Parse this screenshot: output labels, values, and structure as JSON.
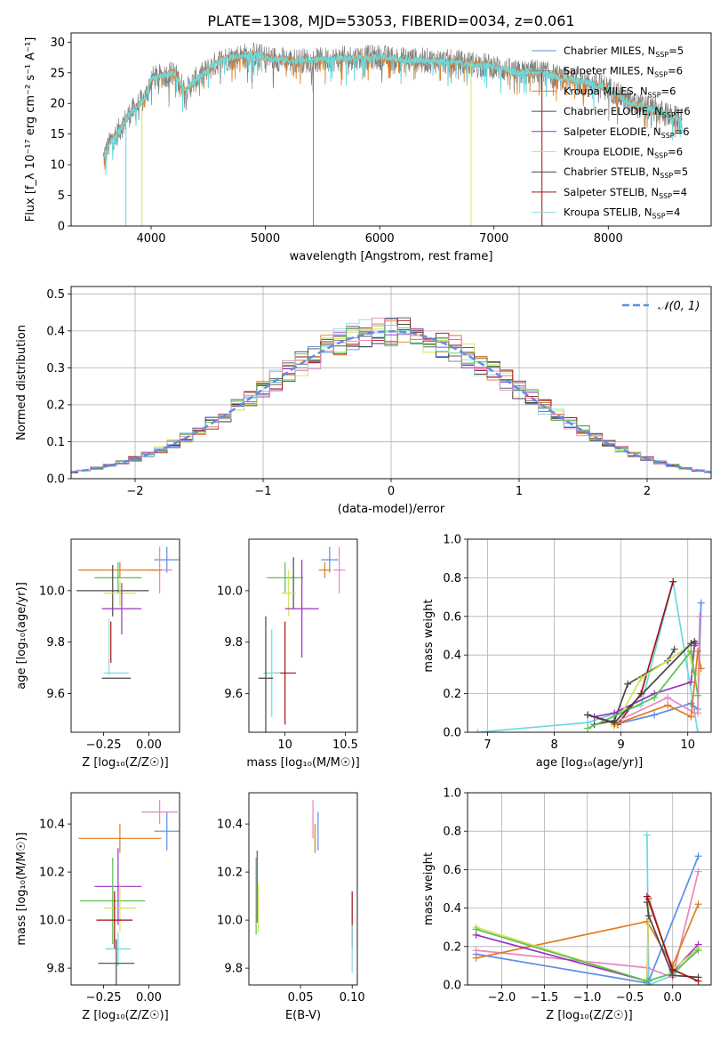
{
  "title": "PLATE=1308, MJD=53053, FIBERID=0034, z=0.061",
  "colors": {
    "chabrier_miles": "#5b8ee6",
    "salpeter_miles": "#808080",
    "kroupa_miles": "#e07b20",
    "chabrier_elodie": "#4a4a4a",
    "salpeter_elodie": "#9b30c0",
    "kroupa_elodie": "#d4e05a",
    "chabrier_stelib": "#454545",
    "salpeter_stelib": "#a01010",
    "kroupa_stelib": "#8fd8e0",
    "cyan": "#6ad9e0",
    "pink": "#e886c0",
    "green": "#5cc050"
  },
  "chart_data": [
    {
      "type": "line",
      "id": "spectrum",
      "xlabel": "wavelength [Angstrom, rest frame]",
      "ylabel": "Flux [f_λ 10⁻¹⁷ erg cm⁻² s⁻¹ A⁻¹]",
      "xlim": [
        3300,
        8900
      ],
      "ylim": [
        0,
        31.5
      ],
      "xticks": [
        4000,
        5000,
        6000,
        7000,
        8000
      ],
      "yticks": [
        0,
        5,
        10,
        15,
        20,
        25,
        30
      ],
      "grid": false,
      "legend_position": "top-right",
      "legend": [
        {
          "label": "Chabrier MILES, N",
          "sub": "SSP",
          "tail": "=5",
          "color": "#5b8ee6"
        },
        {
          "label": "Salpeter MILES, N",
          "sub": "SSP",
          "tail": "=6",
          "color": "#808080"
        },
        {
          "label": "Kroupa MILES, N",
          "sub": "SSP",
          "tail": "=6",
          "color": "#e07b20"
        },
        {
          "label": "Chabrier ELODIE, N",
          "sub": "SSP",
          "tail": "=6",
          "color": "#4a4a4a"
        },
        {
          "label": "Salpeter ELODIE, N",
          "sub": "SSP",
          "tail": "=6",
          "color": "#9b30c0"
        },
        {
          "label": "Kroupa ELODIE, N",
          "sub": "SSP",
          "tail": "=6",
          "color": "#d4e05a"
        },
        {
          "label": "Chabrier STELIB, N",
          "sub": "SSP",
          "tail": "=5",
          "color": "#454545"
        },
        {
          "label": "Salpeter STELIB, N",
          "sub": "SSP",
          "tail": "=4",
          "color": "#a01010"
        },
        {
          "label": "Kroupa STELIB, N",
          "sub": "SSP",
          "tail": "=4",
          "color": "#8fd8e0"
        }
      ],
      "continuum": {
        "x": [
          3580,
          3650,
          3700,
          3800,
          3900,
          3950,
          4000,
          4100,
          4200,
          4300,
          4400,
          4500,
          4600,
          4700,
          4800,
          4900,
          5000,
          5200,
          5400,
          5600,
          5800,
          6000,
          6200,
          6400,
          6600,
          6800,
          7000,
          7200,
          7400,
          7600,
          7800,
          8000,
          8200,
          8400,
          8600,
          8650
        ],
        "y": [
          11,
          14,
          15,
          18,
          20,
          21,
          24,
          24.5,
          25,
          22,
          24,
          25.5,
          27,
          27.5,
          27.8,
          28,
          27.5,
          27,
          27,
          27.2,
          27.5,
          27.5,
          27.2,
          27,
          26.8,
          26.5,
          26,
          25,
          25.2,
          24,
          23.5,
          22.5,
          20,
          19,
          17.5,
          17
        ]
      }
    },
    {
      "type": "line",
      "id": "residuals",
      "xlabel": "(data-model)/error",
      "ylabel": "Normed distribution",
      "xlim": [
        -2.5,
        2.5
      ],
      "ylim": [
        0,
        0.52
      ],
      "xticks": [
        -2,
        -1,
        0,
        1,
        2
      ],
      "yticks": [
        0.0,
        0.1,
        0.2,
        0.3,
        0.4,
        0.5
      ],
      "grid": true,
      "legend_position": "top-right",
      "legend": "𝒩(0, 1)",
      "legend_color": "#5b8ee6"
    },
    {
      "type": "scatter",
      "id": "age-vs-z",
      "xlabel": "Z [log₁₀(Z/Z☉)]",
      "ylabel": "age  [log₁₀(age/yr)]",
      "xlim": [
        -0.43,
        0.17
      ],
      "ylim": [
        9.45,
        10.2
      ],
      "xticks": [
        -0.25,
        0.0
      ],
      "xticklabels": [
        "−0.25",
        "0.00"
      ],
      "yticks": [
        9.6,
        9.8,
        10.0
      ],
      "points": [
        {
          "x": 0.1,
          "xerr": 0.07,
          "y": 10.12,
          "yerr": 0.05,
          "color": "#5b8ee6"
        },
        {
          "x": 0.06,
          "xerr": 0.07,
          "y": 10.08,
          "yerr": 0.09,
          "color": "#e886c0"
        },
        {
          "x": -0.16,
          "xerr": 0.23,
          "y": 10.08,
          "yerr": 0.03,
          "color": "#e07b20"
        },
        {
          "x": -0.17,
          "xerr": 0.13,
          "y": 10.05,
          "yerr": 0.06,
          "color": "#5cc050"
        },
        {
          "x": -0.2,
          "xerr": 0.2,
          "y": 10.0,
          "yerr": 0.1,
          "color": "#4a4a4a"
        },
        {
          "x": -0.16,
          "xerr": 0.09,
          "y": 9.99,
          "yerr": 0.05,
          "color": "#d4e05a"
        },
        {
          "x": -0.15,
          "xerr": 0.11,
          "y": 9.93,
          "yerr": 0.1,
          "color": "#9b30c0"
        },
        {
          "x": -0.21,
          "xerr": 0.0,
          "y": 9.8,
          "yerr": 0.08,
          "color": "#a01010"
        },
        {
          "x": -0.22,
          "xerr": 0.0,
          "y": 9.78,
          "yerr": 0.11,
          "color": "#8fd8e0"
        },
        {
          "x": -0.18,
          "xerr": 0.07,
          "y": 9.68,
          "yerr": 0.0,
          "color": "#6ad9e0"
        },
        {
          "x": -0.18,
          "xerr": 0.08,
          "y": 9.66,
          "yerr": 0.0,
          "color": "#454545"
        }
      ]
    },
    {
      "type": "scatter",
      "id": "age-vs-mass",
      "xlabel": "mass [log₁₀(M/M☉)]",
      "ylabel": "",
      "xlim": [
        9.7,
        10.6
      ],
      "ylim": [
        9.45,
        10.2
      ],
      "xticks": [
        10.0,
        10.5
      ],
      "yticks": [
        9.6,
        9.8,
        10.0
      ],
      "points": [
        {
          "x": 10.37,
          "xerr": 0.07,
          "y": 10.12,
          "yerr": 0.05,
          "color": "#5b8ee6"
        },
        {
          "x": 10.45,
          "xerr": 0.05,
          "y": 10.08,
          "yerr": 0.09,
          "color": "#e886c0"
        },
        {
          "x": 10.33,
          "xerr": 0.05,
          "y": 10.08,
          "yerr": 0.03,
          "color": "#e07b20"
        },
        {
          "x": 10.0,
          "xerr": 0.15,
          "y": 10.05,
          "yerr": 0.06,
          "color": "#5cc050"
        },
        {
          "x": 10.07,
          "xerr": 0.0,
          "y": 10.03,
          "yerr": 0.1,
          "color": "#4a4a4a"
        },
        {
          "x": 10.03,
          "xerr": 0.06,
          "y": 9.99,
          "yerr": 0.09,
          "color": "#d4e05a"
        },
        {
          "x": 10.14,
          "xerr": 0.14,
          "y": 9.93,
          "yerr": 0.19,
          "color": "#9b30c0"
        },
        {
          "x": 10.0,
          "xerr": 0.09,
          "y": 9.68,
          "yerr": 0.2,
          "color": "#a01010"
        },
        {
          "x": 9.89,
          "xerr": 0.07,
          "y": 9.68,
          "yerr": 0.17,
          "color": "#6ad9e0"
        },
        {
          "x": 9.84,
          "xerr": 0.06,
          "y": 9.66,
          "yerr": 0.24,
          "color": "#454545"
        }
      ]
    },
    {
      "type": "line",
      "id": "massweight-vs-age",
      "xlabel": "age  [log₁₀(age/yr)]",
      "ylabel": "mass weight",
      "xlim": [
        6.7,
        10.35
      ],
      "ylim": [
        0,
        1.0
      ],
      "xticks": [
        7,
        8,
        9,
        10
      ],
      "yticks": [
        0.0,
        0.2,
        0.4,
        0.6,
        0.8,
        1.0
      ],
      "grid": true,
      "series": [
        {
          "color": "#6ad9e0",
          "x": [
            6.85,
            8.5,
            9.3,
            9.78,
            10.15
          ],
          "y": [
            0.0,
            0.05,
            0.14,
            0.78,
            0.0
          ]
        },
        {
          "color": "#a01010",
          "x": [
            8.5,
            8.95,
            9.3,
            9.78
          ],
          "y": [
            0.09,
            0.04,
            0.2,
            0.78
          ]
        },
        {
          "color": "#5b8ee6",
          "x": [
            8.9,
            9.5,
            10.05,
            10.15,
            10.2
          ],
          "y": [
            0.04,
            0.09,
            0.15,
            0.12,
            0.67
          ]
        },
        {
          "color": "#e886c0",
          "x": [
            8.9,
            9.7,
            10.1,
            10.15,
            10.18
          ],
          "y": [
            0.05,
            0.18,
            0.1,
            0.1,
            0.6
          ]
        },
        {
          "color": "#4a4a4a",
          "x": [
            8.6,
            8.9,
            9.1,
            9.7,
            9.8
          ],
          "y": [
            0.04,
            0.06,
            0.25,
            0.37,
            0.43
          ]
        },
        {
          "color": "#9b30c0",
          "x": [
            8.6,
            8.9,
            9.5,
            10.05,
            10.1,
            10.12
          ],
          "y": [
            0.08,
            0.1,
            0.2,
            0.26,
            0.45,
            0.46
          ]
        },
        {
          "color": "#d4e05a",
          "x": [
            8.9,
            9.3,
            10.0,
            10.1,
            10.15
          ],
          "y": [
            0.03,
            0.28,
            0.44,
            0.3,
            0.3
          ]
        },
        {
          "color": "#e07b20",
          "x": [
            8.9,
            9.7,
            10.05,
            10.15,
            10.2
          ],
          "y": [
            0.04,
            0.14,
            0.08,
            0.42,
            0.33
          ]
        },
        {
          "color": "#5cc050",
          "x": [
            8.5,
            9.5,
            10.05,
            10.15
          ],
          "y": [
            0.02,
            0.18,
            0.42,
            0.19
          ]
        },
        {
          "color": "#454545",
          "x": [
            8.5,
            8.9,
            10.05,
            10.1
          ],
          "y": [
            0.09,
            0.05,
            0.46,
            0.47
          ]
        }
      ]
    },
    {
      "type": "scatter",
      "id": "mass-vs-z",
      "xlabel": "Z [log₁₀(Z/Z☉)]",
      "ylabel": "mass [log₁₀(M/M☉)]",
      "xlim": [
        -0.43,
        0.17
      ],
      "ylim": [
        9.73,
        10.53
      ],
      "xticks": [
        -0.25,
        0.0
      ],
      "xticklabels": [
        "−0.25",
        "0.00"
      ],
      "yticks": [
        9.8,
        10.0,
        10.2,
        10.4
      ],
      "points": [
        {
          "x": 0.1,
          "xerr": 0.07,
          "y": 10.37,
          "yerr": 0.08,
          "color": "#5b8ee6"
        },
        {
          "x": 0.06,
          "xerr": 0.1,
          "y": 10.45,
          "yerr": 0.05,
          "color": "#e886c0"
        },
        {
          "x": -0.16,
          "xerr": 0.23,
          "y": 10.34,
          "yerr": 0.06,
          "color": "#e07b20"
        },
        {
          "x": -0.17,
          "xerr": 0.13,
          "y": 10.14,
          "yerr": 0.16,
          "color": "#9b30c0"
        },
        {
          "x": -0.2,
          "xerr": 0.18,
          "y": 10.08,
          "yerr": 0.18,
          "color": "#5cc050"
        },
        {
          "x": -0.16,
          "xerr": 0.09,
          "y": 10.05,
          "yerr": 0.1,
          "color": "#d4e05a"
        },
        {
          "x": -0.19,
          "xerr": 0.1,
          "y": 10.0,
          "yerr": 0.12,
          "color": "#a01010"
        },
        {
          "x": -0.17,
          "xerr": 0.07,
          "y": 9.88,
          "yerr": 0.07,
          "color": "#6ad9e0"
        },
        {
          "x": -0.18,
          "xerr": 0.1,
          "y": 9.82,
          "yerr": 0.1,
          "color": "#454545"
        }
      ]
    },
    {
      "type": "scatter",
      "id": "mass-vs-ebv",
      "xlabel": "E(B-V)",
      "ylabel": "",
      "xlim": [
        0.0,
        0.105
      ],
      "ylim": [
        9.73,
        10.53
      ],
      "xticks": [
        0.05,
        0.1
      ],
      "xticklabels": [
        "0.05",
        "0.10"
      ],
      "yticks": [
        9.8,
        10.0,
        10.2,
        10.4
      ],
      "points": [
        {
          "x": 0.067,
          "y": 10.37,
          "yerr": 0.08,
          "color": "#5b8ee6"
        },
        {
          "x": 0.062,
          "y": 10.42,
          "yerr": 0.08,
          "color": "#e886c0"
        },
        {
          "x": 0.064,
          "y": 10.34,
          "yerr": 0.06,
          "color": "#e07b20"
        },
        {
          "x": 0.007,
          "y": 10.1,
          "yerr": 0.16,
          "color": "#5cc050"
        },
        {
          "x": 0.008,
          "y": 10.14,
          "yerr": 0.15,
          "color": "#9b30c0"
        },
        {
          "x": 0.009,
          "y": 10.05,
          "yerr": 0.1,
          "color": "#d4e05a"
        },
        {
          "x": 0.1,
          "y": 10.0,
          "yerr": 0.12,
          "color": "#a01010"
        },
        {
          "x": 0.1,
          "y": 9.88,
          "yerr": 0.1,
          "color": "#8fd8e0"
        }
      ]
    },
    {
      "type": "line",
      "id": "massweight-vs-z",
      "xlabel": "Z [log₁₀(Z/Z☉)]",
      "ylabel": "mass weight",
      "xlim": [
        -2.4,
        0.45
      ],
      "ylim": [
        0,
        1.0
      ],
      "xticks": [
        -2.0,
        -1.5,
        -1.0,
        -0.5,
        0.0
      ],
      "xticklabels": [
        "−2.0",
        "−1.5",
        "−1.0",
        "−0.5",
        "0.0"
      ],
      "yticks": [
        0.0,
        0.2,
        0.4,
        0.6,
        0.8,
        1.0
      ],
      "grid": true,
      "series": [
        {
          "color": "#6ad9e0",
          "x": [
            -0.3,
            -0.28,
            0.0,
            0.3
          ],
          "y": [
            0.78,
            0.0,
            0.05,
            0.19
          ]
        },
        {
          "color": "#5b8ee6",
          "x": [
            -2.3,
            -0.3,
            -0.28,
            0.3
          ],
          "y": [
            0.16,
            0.01,
            0.02,
            0.67
          ]
        },
        {
          "color": "#e886c0",
          "x": [
            -2.3,
            -0.3,
            0.0,
            0.3
          ],
          "y": [
            0.18,
            0.09,
            0.04,
            0.59
          ]
        },
        {
          "color": "#e07b20",
          "x": [
            -2.3,
            -0.3,
            0.0,
            0.3
          ],
          "y": [
            0.14,
            0.33,
            0.1,
            0.42
          ]
        },
        {
          "color": "#9b30c0",
          "x": [
            -2.3,
            -0.3,
            -0.28,
            0.0,
            0.3
          ],
          "y": [
            0.26,
            0.02,
            0.45,
            0.07,
            0.21
          ]
        },
        {
          "color": "#d4e05a",
          "x": [
            -2.3,
            -0.3,
            -0.28,
            0.0,
            0.3
          ],
          "y": [
            0.3,
            0.02,
            0.44,
            0.08,
            0.19
          ]
        },
        {
          "color": "#5cc050",
          "x": [
            -2.3,
            -0.3,
            0.0,
            0.3
          ],
          "y": [
            0.29,
            0.02,
            0.06,
            0.18
          ]
        },
        {
          "color": "#4a4a4a",
          "x": [
            -0.3,
            -0.28,
            0.0,
            0.3
          ],
          "y": [
            0.43,
            0.36,
            0.05,
            0.04
          ]
        },
        {
          "color": "#a01010",
          "x": [
            -0.3,
            0.0,
            0.3
          ],
          "y": [
            0.46,
            0.08,
            0.02
          ]
        }
      ]
    }
  ]
}
